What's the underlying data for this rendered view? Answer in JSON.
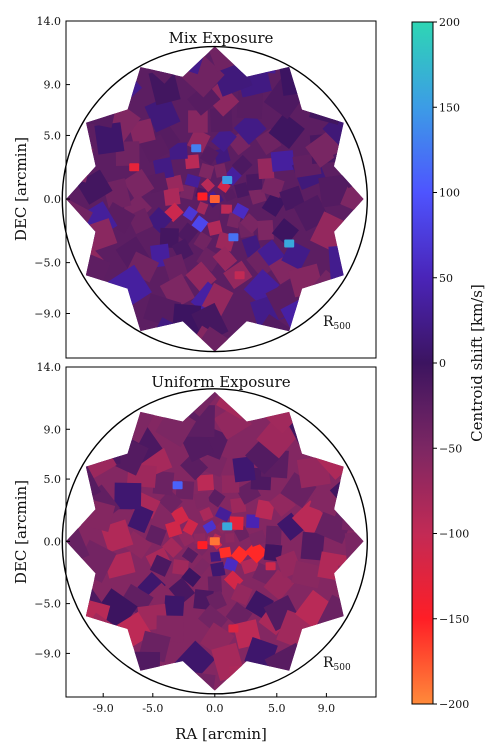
{
  "chart_data": [
    {
      "type": "heatmap",
      "title": "Mix Exposure",
      "xlabel": "",
      "ylabel": "DEC [arcmin]",
      "xlim": [
        -12.0,
        13.0
      ],
      "ylim": [
        -12.5,
        14.0
      ],
      "yticks": [
        14.0,
        9.0,
        5.0,
        0.0,
        -5.0,
        -9.0
      ],
      "ytick_labels": [
        "14.0",
        "9.0",
        "5.0",
        "0.0",
        "−5.0",
        "−9.0"
      ],
      "circle_label": "R500",
      "circle_center": [
        0.0,
        0.0
      ],
      "circle_radius": 12.3,
      "map_extent": 12.0,
      "hot_spots": [
        {
          "x": 1.0,
          "y": 1.5,
          "value": 150
        },
        {
          "x": 0.0,
          "y": 0.0,
          "value": -180
        },
        {
          "x": -1.0,
          "y": 0.2,
          "value": -150
        },
        {
          "x": 1.5,
          "y": -3.0,
          "value": 120
        },
        {
          "x": 6.0,
          "y": -3.5,
          "value": 160
        },
        {
          "x": -6.5,
          "y": 2.5,
          "value": -130
        },
        {
          "x": -1.5,
          "y": 4.0,
          "value": 130
        },
        {
          "x": 2.0,
          "y": -6.0,
          "value": -100
        }
      ]
    },
    {
      "type": "heatmap",
      "title": "Uniform Exposure",
      "xlabel": "RA [arcmin]",
      "ylabel": "DEC [arcmin]",
      "xlim": [
        -12.0,
        13.0
      ],
      "ylim": [
        -12.5,
        14.0
      ],
      "xticks": [
        -9.0,
        -5.0,
        0.0,
        5.0,
        9.0
      ],
      "xtick_labels": [
        "-9.0",
        "-5.0",
        "0.0",
        "5.0",
        "9.0"
      ],
      "yticks": [
        14.0,
        9.0,
        5.0,
        0.0,
        -5.0,
        -9.0
      ],
      "ytick_labels": [
        "14.0",
        "9.0",
        "5.0",
        "0.0",
        "−5.0",
        "−9.0"
      ],
      "circle_label": "R500",
      "circle_center": [
        0.0,
        0.0
      ],
      "circle_radius": 12.3,
      "map_extent": 12.0,
      "hot_spots": [
        {
          "x": 1.0,
          "y": 1.2,
          "value": 160
        },
        {
          "x": 0.0,
          "y": 0.0,
          "value": -190
        },
        {
          "x": -1.0,
          "y": -0.3,
          "value": -150
        },
        {
          "x": -3.0,
          "y": 4.5,
          "value": 110
        },
        {
          "x": 4.5,
          "y": -2.0,
          "value": -110
        },
        {
          "x": 1.5,
          "y": -7.0,
          "value": -120
        }
      ]
    }
  ],
  "colorbar": {
    "label": "Centroid shift [km/s]",
    "range": [
      -200,
      200
    ],
    "ticks": [
      200,
      150,
      100,
      50,
      0,
      -50,
      -100,
      -150,
      -200
    ],
    "tick_labels": [
      "200",
      "150",
      "100",
      "50",
      "0",
      "−50",
      "−100",
      "−150",
      "−200"
    ],
    "colors": [
      "#ff8a3a",
      "#ff1e26",
      "#c22a55",
      "#7c2763",
      "#3c1460",
      "#4a24b8",
      "#4e54ff",
      "#3c9ce6",
      "#2ed6b4"
    ]
  }
}
